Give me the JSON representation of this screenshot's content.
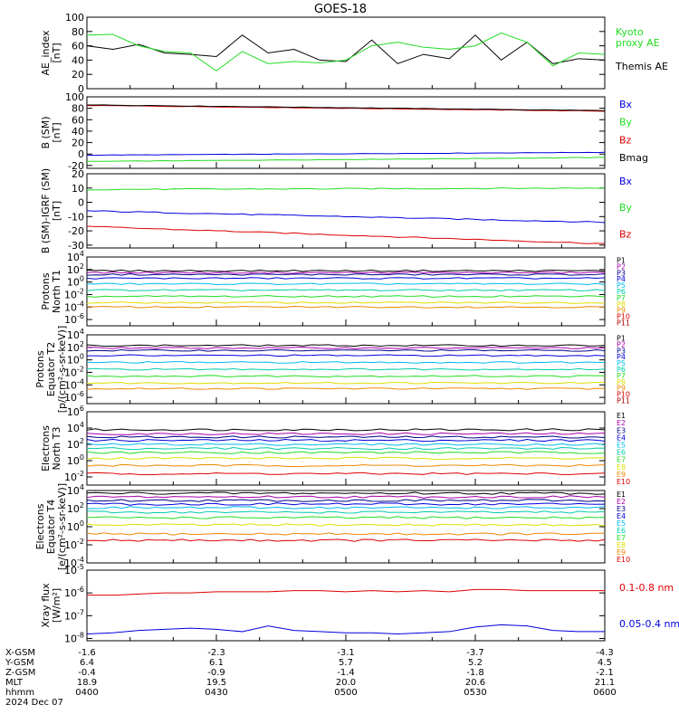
{
  "title": "GOES-18",
  "colors": {
    "black": "#000000",
    "blue": "#0000dd",
    "green": "#22dd22",
    "red": "#dd0000",
    "navy": "#000088",
    "purple": "#aa00aa",
    "cyan": "#00bbee",
    "teal": "#00ccaa",
    "yellow": "#dddd00",
    "orange": "#ee8800",
    "darkred": "#aa0000",
    "brown": "#993300"
  },
  "chart_data": [
    {
      "id": "ae",
      "type": "line",
      "ylabel": [
        "AE_index",
        "[nT]"
      ],
      "ylim": [
        0,
        100
      ],
      "yticks": [
        0,
        20,
        40,
        60,
        80,
        100
      ],
      "x": [
        0.0,
        0.05,
        0.1,
        0.15,
        0.2,
        0.25,
        0.3,
        0.35,
        0.4,
        0.45,
        0.5,
        0.55,
        0.6,
        0.65,
        0.7,
        0.75,
        0.8,
        0.85,
        0.9,
        0.95,
        1.0
      ],
      "series": [
        {
          "name": "Themis AE",
          "color": "black",
          "values": [
            60,
            55,
            62,
            50,
            48,
            45,
            75,
            50,
            55,
            40,
            38,
            68,
            35,
            48,
            42,
            75,
            40,
            65,
            35,
            42,
            40
          ]
        },
        {
          "name": "Kyoto proxy AE",
          "color": "green",
          "legend_lines": [
            "Kyoto",
            "proxy AE"
          ],
          "values": [
            75,
            76,
            60,
            52,
            50,
            25,
            52,
            35,
            38,
            36,
            40,
            60,
            65,
            58,
            55,
            60,
            78,
            65,
            32,
            50,
            48
          ]
        }
      ],
      "legend_order": [
        "Kyoto proxy AE",
        "Themis AE"
      ]
    },
    {
      "id": "bsm",
      "type": "line",
      "ylabel": [
        "B (SM)",
        "[nT]"
      ],
      "ylim": [
        -25,
        100
      ],
      "yticks": [
        -20,
        0,
        20,
        40,
        60,
        80,
        100
      ],
      "series": [
        {
          "name": "Bx",
          "color": "blue",
          "start": -2,
          "end": 3
        },
        {
          "name": "By",
          "color": "green",
          "start": -13,
          "end": -6
        },
        {
          "name": "Bz",
          "color": "red",
          "start": 85,
          "end": 75
        },
        {
          "name": "Bmag",
          "color": "black",
          "start": 86,
          "end": 76
        }
      ]
    },
    {
      "id": "bigrf",
      "type": "line",
      "ylabel": [
        "B (SM)-IGRF (SM)",
        "[nT]"
      ],
      "ylim": [
        -32,
        20
      ],
      "yticks": [
        -30,
        -20,
        -10,
        0,
        10,
        20
      ],
      "series": [
        {
          "name": "Bx",
          "color": "blue",
          "start": -6,
          "end": -14
        },
        {
          "name": "By",
          "color": "green",
          "start": 9,
          "end": 10
        },
        {
          "name": "Bz",
          "color": "red",
          "start": -17,
          "end": -29
        }
      ]
    },
    {
      "id": "p1",
      "type": "line",
      "log": true,
      "ylabel": [
        "Protons",
        "North T1"
      ],
      "ylim_exp": [
        -7,
        4
      ],
      "ytick_exps": [
        -6,
        -4,
        -2,
        0,
        2,
        4
      ],
      "channels": [
        {
          "name": "P1",
          "color": "black",
          "level": 1.8
        },
        {
          "name": "P2",
          "color": "purple",
          "level": 1.5
        },
        {
          "name": "P3",
          "color": "navy",
          "level": 1.2
        },
        {
          "name": "P4",
          "color": "blue",
          "level": 0.6
        },
        {
          "name": "P5",
          "color": "cyan",
          "level": -0.3
        },
        {
          "name": "P6",
          "color": "teal",
          "level": -1.3
        },
        {
          "name": "P7",
          "color": "green",
          "level": -2.3
        },
        {
          "name": "P8",
          "color": "yellow",
          "level": -3.3
        },
        {
          "name": "P9",
          "color": "orange",
          "level": -4.0
        },
        {
          "name": "P10",
          "color": "red",
          "level": null
        },
        {
          "name": "P11",
          "color": "darkred",
          "level": null
        }
      ]
    },
    {
      "id": "p2",
      "type": "line",
      "log": true,
      "ylabel": [
        "Protons",
        "Equator T2",
        "[p/(cm²-s-sr-keV)]"
      ],
      "ylim_exp": [
        -7,
        4
      ],
      "ytick_exps": [
        -6,
        -4,
        -2,
        0,
        2,
        4
      ],
      "channels": [
        {
          "name": "P1",
          "color": "black",
          "level": 2.3
        },
        {
          "name": "P2",
          "color": "purple",
          "level": 1.9
        },
        {
          "name": "P3",
          "color": "navy",
          "level": 1.5
        },
        {
          "name": "P4",
          "color": "blue",
          "level": 0.7
        },
        {
          "name": "P5",
          "color": "cyan",
          "level": -0.4
        },
        {
          "name": "P6",
          "color": "teal",
          "level": -1.5
        },
        {
          "name": "P7",
          "color": "green",
          "level": -2.6
        },
        {
          "name": "P8",
          "color": "yellow",
          "level": -3.7
        },
        {
          "name": "P9",
          "color": "orange",
          "level": -4.6
        },
        {
          "name": "P10",
          "color": "red",
          "level": null
        },
        {
          "name": "P11",
          "color": "darkred",
          "level": null
        }
      ]
    },
    {
      "id": "e3",
      "type": "line",
      "log": true,
      "ylabel": [
        "Electrons",
        "North T3"
      ],
      "ylim_exp": [
        -3,
        6
      ],
      "ytick_exps": [
        -2,
        0,
        2,
        4,
        6
      ],
      "channels": [
        {
          "name": "E1",
          "color": "black",
          "level": 3.8
        },
        {
          "name": "E2",
          "color": "purple",
          "level": 3.3
        },
        {
          "name": "E3",
          "color": "navy",
          "level": 2.9
        },
        {
          "name": "E4",
          "color": "blue",
          "level": 2.5
        },
        {
          "name": "E5",
          "color": "cyan",
          "level": 2.0
        },
        {
          "name": "E6",
          "color": "teal",
          "level": 1.5
        },
        {
          "name": "E7",
          "color": "green",
          "level": 1.0
        },
        {
          "name": "E8",
          "color": "yellow",
          "level": 0.3
        },
        {
          "name": "E9",
          "color": "orange",
          "level": -0.6
        },
        {
          "name": "E10",
          "color": "red",
          "level": -1.6
        }
      ]
    },
    {
      "id": "e4",
      "type": "line",
      "log": true,
      "ylabel": [
        "Electrons",
        "Equator T4",
        "[e/(cm²-s-sr-keV)]"
      ],
      "ylim_exp": [
        -4,
        4
      ],
      "ytick_exps": [
        -4,
        -2,
        0,
        2,
        4
      ],
      "channels": [
        {
          "name": "E1",
          "color": "black",
          "level": 3.7
        },
        {
          "name": "E2",
          "color": "purple",
          "level": 3.3
        },
        {
          "name": "E3",
          "color": "navy",
          "level": 2.9
        },
        {
          "name": "E4",
          "color": "blue",
          "level": 2.5
        },
        {
          "name": "E5",
          "color": "cyan",
          "level": 2.1
        },
        {
          "name": "E6",
          "color": "teal",
          "level": 1.6
        },
        {
          "name": "E7",
          "color": "green",
          "level": 1.0
        },
        {
          "name": "E8",
          "color": "yellow",
          "level": 0.2
        },
        {
          "name": "E9",
          "color": "orange",
          "level": -0.8
        },
        {
          "name": "E10",
          "color": "red",
          "level": -1.5
        }
      ]
    },
    {
      "id": "xray",
      "type": "line",
      "log": true,
      "ylabel": [
        "Xray flux",
        "[W/m²]"
      ],
      "ylim_exp": [
        -8.1,
        -5
      ],
      "ytick_exps": [
        -8,
        -7,
        -6,
        -5
      ],
      "series": [
        {
          "name": "0.1-0.8 nm",
          "color": "red",
          "values_exp": [
            -6.1,
            -6.1,
            -6.05,
            -6.0,
            -6.0,
            -5.95,
            -5.95,
            -5.95,
            -5.9,
            -5.9,
            -5.95,
            -5.9,
            -5.95,
            -5.9,
            -5.95,
            -5.85,
            -5.85,
            -5.9,
            -5.9,
            -5.9,
            -5.9
          ]
        },
        {
          "name": "0.05-0.4 nm",
          "color": "blue",
          "values_exp": [
            -7.8,
            -7.75,
            -7.65,
            -7.6,
            -7.55,
            -7.6,
            -7.7,
            -7.45,
            -7.65,
            -7.7,
            -7.75,
            -7.75,
            -7.8,
            -7.75,
            -7.7,
            -7.5,
            -7.4,
            -7.45,
            -7.65,
            -7.7,
            -7.7
          ]
        }
      ]
    }
  ],
  "orbit": {
    "row_labels": [
      "X-GSM",
      "Y-GSM",
      "Z-GSM",
      "MLT",
      "hhmm"
    ],
    "columns": [
      [
        "-1.6",
        "6.4",
        "-0.4",
        "18.9",
        "0400"
      ],
      [
        "-2.3",
        "6.1",
        "-0.9",
        "19.5",
        "0430"
      ],
      [
        "-3.1",
        "5.7",
        "-1.4",
        "20.0",
        "0500"
      ],
      [
        "-3.7",
        "5.2",
        "-1.8",
        "20.6",
        "0530"
      ],
      [
        "-4.3",
        "4.5",
        "-2.1",
        "21.1",
        "0600"
      ]
    ],
    "date": "2024 Dec 07"
  }
}
